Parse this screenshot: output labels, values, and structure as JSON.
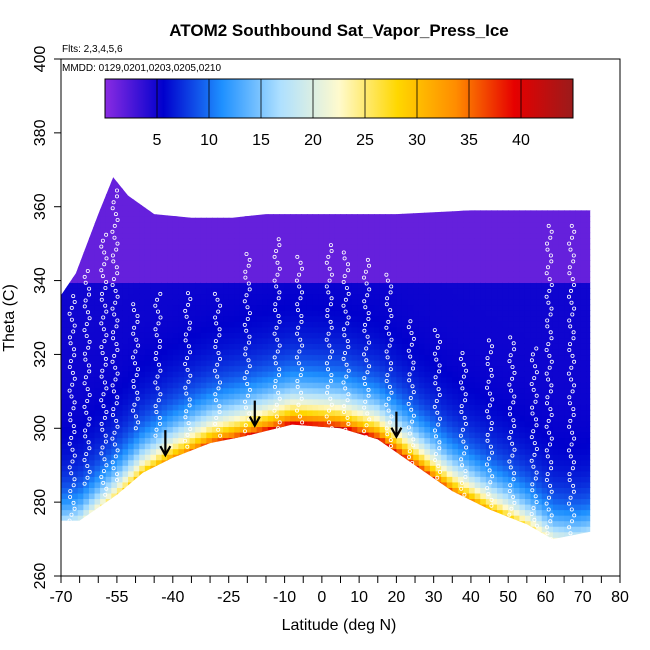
{
  "chart_data": {
    "type": "heatmap",
    "title": "ATOM2 Southbound Sat_Vapor_Press_Ice",
    "notes": [
      "Flts: 2,3,4,5,6",
      "MMDD: 0129,0201,0203,0205,0210"
    ],
    "xlabel": "Latitude (deg N)",
    "ylabel": "Theta (C)",
    "xlim": [
      -70,
      80
    ],
    "ylim": [
      260,
      400
    ],
    "x_tick_labels": [
      "-70",
      "-55",
      "-40",
      "-25",
      "-10",
      "0",
      "10",
      "20",
      "30",
      "40",
      "50",
      "60",
      "70",
      "80"
    ],
    "x_tick_values": [
      -70,
      -55,
      -40,
      -25,
      -10,
      0,
      10,
      20,
      30,
      40,
      50,
      60,
      70,
      80
    ],
    "x_minor_ticks": [
      -65,
      -60,
      -50,
      -45,
      -35,
      -30,
      -20,
      -15,
      -5,
      5,
      15,
      25,
      35,
      45,
      55,
      65,
      75
    ],
    "y_tick_labels": [
      "260",
      "280",
      "300",
      "320",
      "340",
      "360",
      "380",
      "400"
    ],
    "y_tick_values": [
      260,
      280,
      300,
      320,
      340,
      360,
      380,
      400
    ],
    "colorbar": {
      "range": [
        0,
        45
      ],
      "tick_labels": [
        "5",
        "10",
        "15",
        "20",
        "25",
        "30",
        "35",
        "40"
      ],
      "tick_values": [
        5,
        10,
        15,
        20,
        25,
        30,
        35,
        40
      ],
      "colors": [
        "#8a2be2",
        "#0000cd",
        "#1e90ff",
        "#aee0ff",
        "#fffacd",
        "#ffd700",
        "#ff8c00",
        "#e60000",
        "#9b1b1b"
      ]
    },
    "domain_top": [
      [
        -70,
        336
      ],
      [
        -66,
        342
      ],
      [
        -60,
        358
      ],
      [
        -56,
        368
      ],
      [
        -52,
        363
      ],
      [
        -45,
        358
      ],
      [
        -35,
        357
      ],
      [
        -24,
        357
      ],
      [
        -15,
        358
      ],
      [
        0,
        358
      ],
      [
        20,
        358
      ],
      [
        40,
        359
      ],
      [
        60,
        359
      ],
      [
        72,
        359
      ]
    ],
    "domain_bottom": [
      [
        -70,
        275
      ],
      [
        -65,
        275
      ],
      [
        -55,
        282
      ],
      [
        -48,
        288
      ],
      [
        -40,
        292
      ],
      [
        -30,
        296
      ],
      [
        -20,
        298
      ],
      [
        -8,
        301
      ],
      [
        5,
        300
      ],
      [
        15,
        297
      ],
      [
        25,
        290
      ],
      [
        35,
        283
      ],
      [
        45,
        278
      ],
      [
        55,
        274
      ],
      [
        62,
        270
      ],
      [
        72,
        272
      ]
    ],
    "arrows": [
      [
        -42,
        293
      ],
      [
        -18,
        301
      ],
      [
        20,
        298
      ]
    ]
  }
}
